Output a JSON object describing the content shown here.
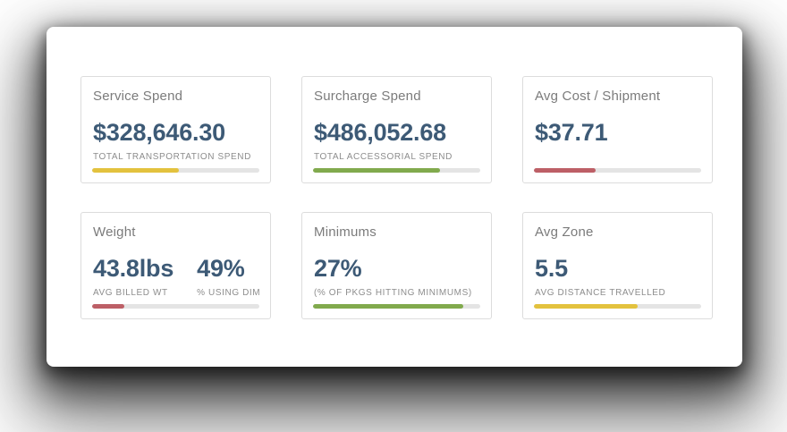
{
  "panel": {
    "background": "#ffffff"
  },
  "colors": {
    "yellow": "#e3c23e",
    "green": "#81aa4d",
    "red": "#bd5f66",
    "track": "#e4e4e4",
    "value": "#3d5a76",
    "title": "#7b7b7b",
    "label": "#8d8d8d"
  },
  "cards": [
    {
      "id": "service-spend",
      "title": "Service Spend",
      "metrics": [
        {
          "value": "$328,646.30",
          "label": "TOTAL TRANSPORTATION SPEND"
        }
      ],
      "progress": {
        "percent": 52,
        "color": "yellow"
      }
    },
    {
      "id": "surcharge-spend",
      "title": "Surcharge Spend",
      "metrics": [
        {
          "value": "$486,052.68",
          "label": "TOTAL ACCESSORIAL SPEND"
        }
      ],
      "progress": {
        "percent": 76,
        "color": "green"
      }
    },
    {
      "id": "avg-cost-shipment",
      "title": "Avg Cost / Shipment",
      "metrics": [
        {
          "value": "$37.71",
          "label": ""
        }
      ],
      "progress": {
        "percent": 37,
        "color": "red"
      }
    },
    {
      "id": "weight",
      "title": "Weight",
      "metrics": [
        {
          "value": "43.8lbs",
          "label": "AVG BILLED WT"
        },
        {
          "value": "49%",
          "label": "% USING DIM"
        }
      ],
      "progress": {
        "percent": 19,
        "color": "red"
      }
    },
    {
      "id": "minimums",
      "title": "Minimums",
      "metrics": [
        {
          "value": "27%",
          "label": "(% OF PKGS HITTING MINIMUMS)"
        }
      ],
      "progress": {
        "percent": 90,
        "color": "green"
      }
    },
    {
      "id": "avg-zone",
      "title": "Avg Zone",
      "metrics": [
        {
          "value": "5.5",
          "label": "AVG DISTANCE TRAVELLED"
        }
      ],
      "progress": {
        "percent": 62,
        "color": "yellow"
      }
    }
  ]
}
